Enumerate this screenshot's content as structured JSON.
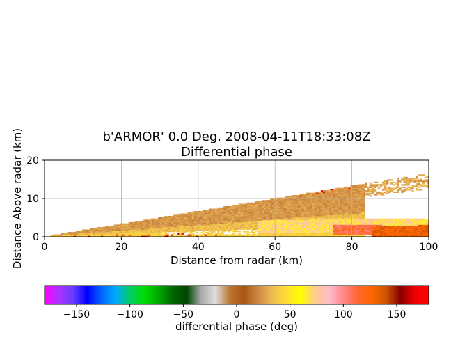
{
  "chart_data": {
    "type": "heatmap",
    "title_line1": "b'ARMOR' 0.0 Deg. 2008-04-11T18:33:08Z",
    "title_line2": "Differential phase",
    "xlabel": "Distance from radar (km)",
    "ylabel": "Distance Above radar  (km)",
    "xlim": [
      0,
      100
    ],
    "ylim": [
      0,
      20
    ],
    "x_ticks": [
      "0",
      "20",
      "40",
      "60",
      "80",
      "100"
    ],
    "y_ticks": [
      "0",
      "10",
      "20"
    ],
    "grid": true,
    "colorbar": {
      "label": "differential phase (deg)",
      "range": [
        -180,
        180
      ],
      "ticks": [
        "−150",
        "−100",
        "−50",
        "0",
        "50",
        "100",
        "150"
      ],
      "tick_values": [
        -150,
        -100,
        -50,
        0,
        50,
        100,
        150
      ],
      "colors": [
        "#ff00ff",
        "#aa33ff",
        "#6a3cff",
        "#0000ff",
        "#0066ff",
        "#00aaff",
        "#00cc66",
        "#00dd00",
        "#00aa00",
        "#006600",
        "#004400",
        "#aaaaaa",
        "#dddddd",
        "#bb7733",
        "#aa5511",
        "#cc8844",
        "#eebb55",
        "#ffdd33",
        "#ffff00",
        "#ffcc88",
        "#ffbbcc",
        "#ff8888",
        "#ff6633",
        "#ff6600",
        "#cc5500",
        "#880000",
        "#ee0000",
        "#ff0000"
      ]
    },
    "data_summary": [
      {
        "name": "upper brown band",
        "x_range_km": [
          2,
          83
        ],
        "top_height_km": 13.5,
        "value_deg": 20
      },
      {
        "name": "lower tan band",
        "x_range_km": [
          10,
          100
        ],
        "value_deg": 35
      },
      {
        "name": "yellow core",
        "x_range_km": [
          55,
          100
        ],
        "value_deg": 70
      },
      {
        "name": "pink/orange core",
        "x_range_km": [
          75,
          98
        ],
        "value_deg": 110
      }
    ]
  }
}
